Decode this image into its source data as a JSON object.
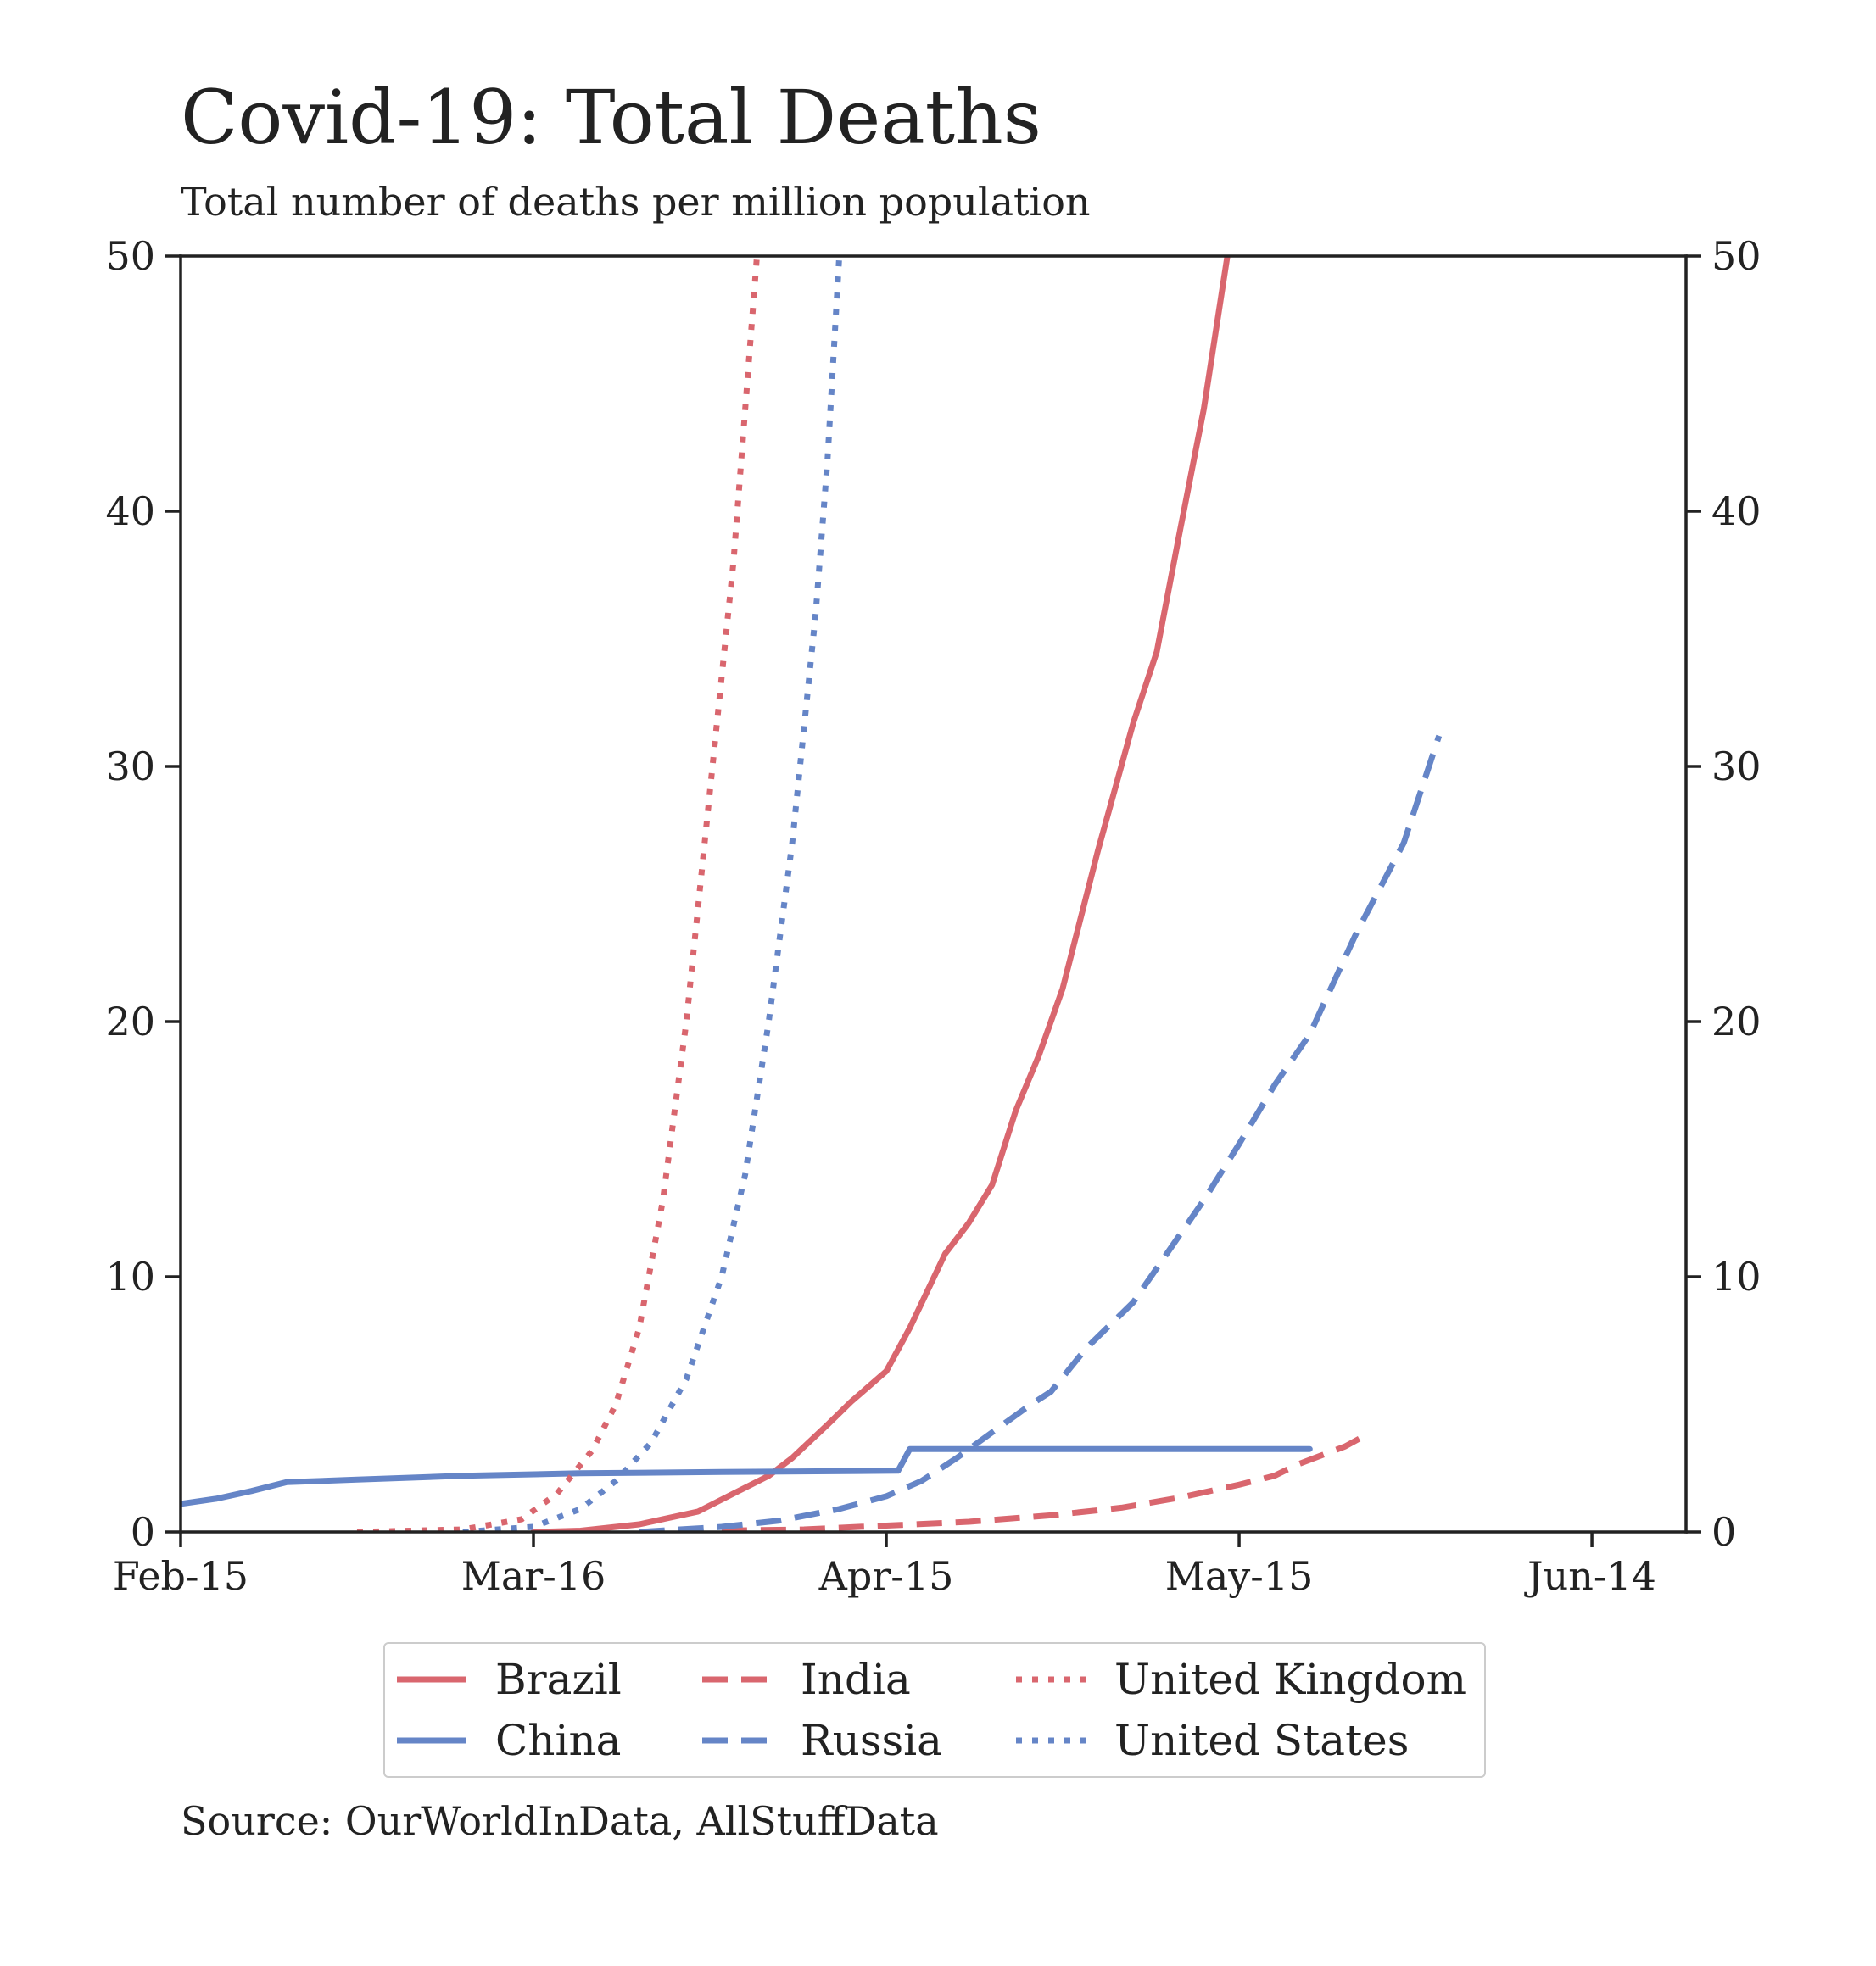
{
  "chart_data": {
    "type": "line",
    "title": "Covid-19: Total Deaths",
    "subtitle": "Total number of deaths per million population",
    "source": "Source: OurWorldInData, AllStuffData",
    "x_ticks": [
      "Feb-15",
      "Mar-16",
      "Apr-15",
      "May-15",
      "Jun-14"
    ],
    "x_tick_dates": [
      "2020-02-15",
      "2020-03-16",
      "2020-04-15",
      "2020-05-15",
      "2020-06-14"
    ],
    "xlim": [
      "2020-02-15",
      "2020-06-22"
    ],
    "ylim": [
      0,
      50
    ],
    "y_ticks": [
      0,
      10,
      20,
      30,
      40,
      50
    ],
    "y_axis_both_sides": true,
    "grid": false,
    "legend_position": "bottom",
    "series": [
      {
        "name": "Brazil",
        "color": "#d9666e",
        "style": "solid",
        "points": [
          [
            "2020-03-16",
            0
          ],
          [
            "2020-03-20",
            0.05
          ],
          [
            "2020-03-25",
            0.3
          ],
          [
            "2020-03-30",
            0.8
          ],
          [
            "2020-04-02",
            1.5
          ],
          [
            "2020-04-05",
            2.2
          ],
          [
            "2020-04-07",
            2.9
          ],
          [
            "2020-04-10",
            4.2
          ],
          [
            "2020-04-12",
            5.1
          ],
          [
            "2020-04-15",
            6.3
          ],
          [
            "2020-04-17",
            8
          ],
          [
            "2020-04-20",
            10.9
          ],
          [
            "2020-04-22",
            12.1
          ],
          [
            "2020-04-24",
            13.6
          ],
          [
            "2020-04-26",
            16.5
          ],
          [
            "2020-04-28",
            18.7
          ],
          [
            "2020-04-30",
            21.3
          ],
          [
            "2020-05-03",
            26.7
          ],
          [
            "2020-05-06",
            31.7
          ],
          [
            "2020-05-08",
            34.5
          ],
          [
            "2020-05-10",
            39.3
          ],
          [
            "2020-05-12",
            44
          ],
          [
            "2020-05-14",
            50
          ]
        ]
      },
      {
        "name": "China",
        "color": "#6585c7",
        "style": "solid",
        "points": [
          [
            "2020-02-15",
            1.1
          ],
          [
            "2020-02-18",
            1.3
          ],
          [
            "2020-02-21",
            1.6
          ],
          [
            "2020-02-24",
            1.95
          ],
          [
            "2020-03-01",
            2.05
          ],
          [
            "2020-03-10",
            2.2
          ],
          [
            "2020-03-20",
            2.3
          ],
          [
            "2020-04-01",
            2.35
          ],
          [
            "2020-04-16",
            2.4
          ],
          [
            "2020-04-17",
            3.25
          ],
          [
            "2020-05-01",
            3.25
          ],
          [
            "2020-05-21",
            3.25
          ]
        ]
      },
      {
        "name": "India",
        "color": "#d9666e",
        "style": "dashed",
        "points": [
          [
            "2020-04-01",
            0.05
          ],
          [
            "2020-04-08",
            0.1
          ],
          [
            "2020-04-15",
            0.25
          ],
          [
            "2020-04-22",
            0.4
          ],
          [
            "2020-04-29",
            0.65
          ],
          [
            "2020-05-05",
            0.95
          ],
          [
            "2020-05-10",
            1.35
          ],
          [
            "2020-05-15",
            1.85
          ],
          [
            "2020-05-18",
            2.2
          ],
          [
            "2020-05-20",
            2.65
          ],
          [
            "2020-05-22",
            3
          ],
          [
            "2020-05-24",
            3.35
          ],
          [
            "2020-05-26",
            3.85
          ]
        ]
      },
      {
        "name": "Russia",
        "color": "#6585c7",
        "style": "dashed",
        "points": [
          [
            "2020-03-25",
            0
          ],
          [
            "2020-04-01",
            0.2
          ],
          [
            "2020-04-06",
            0.45
          ],
          [
            "2020-04-11",
            0.9
          ],
          [
            "2020-04-15",
            1.4
          ],
          [
            "2020-04-18",
            2
          ],
          [
            "2020-04-21",
            2.9
          ],
          [
            "2020-04-24",
            3.9
          ],
          [
            "2020-04-27",
            4.9
          ],
          [
            "2020-04-29",
            5.5
          ],
          [
            "2020-05-02",
            7.2
          ],
          [
            "2020-05-06",
            9
          ],
          [
            "2020-05-09",
            11
          ],
          [
            "2020-05-12",
            13
          ],
          [
            "2020-05-15",
            15.2
          ],
          [
            "2020-05-18",
            17.5
          ],
          [
            "2020-05-21",
            19.5
          ],
          [
            "2020-05-25",
            23.5
          ],
          [
            "2020-05-29",
            27
          ],
          [
            "2020-06-01",
            31.2
          ]
        ]
      },
      {
        "name": "United Kingdom",
        "color": "#d9666e",
        "style": "dotted",
        "points": [
          [
            "2020-03-01",
            0
          ],
          [
            "2020-03-10",
            0.1
          ],
          [
            "2020-03-15",
            0.5
          ],
          [
            "2020-03-18",
            1.5
          ],
          [
            "2020-03-21",
            3.2
          ],
          [
            "2020-03-23",
            5
          ],
          [
            "2020-03-25",
            8
          ],
          [
            "2020-03-27",
            13
          ],
          [
            "2020-03-29",
            20
          ],
          [
            "2020-03-31",
            29
          ],
          [
            "2020-04-02",
            38
          ],
          [
            "2020-04-04",
            50
          ]
        ]
      },
      {
        "name": "United States",
        "color": "#6585c7",
        "style": "dotted",
        "points": [
          [
            "2020-03-10",
            0
          ],
          [
            "2020-03-16",
            0.2
          ],
          [
            "2020-03-20",
            0.9
          ],
          [
            "2020-03-23",
            2
          ],
          [
            "2020-03-26",
            3.5
          ],
          [
            "2020-03-29",
            6
          ],
          [
            "2020-04-01",
            10
          ],
          [
            "2020-04-03",
            14
          ],
          [
            "2020-04-05",
            20
          ],
          [
            "2020-04-07",
            27
          ],
          [
            "2020-04-09",
            36
          ],
          [
            "2020-04-10",
            42
          ],
          [
            "2020-04-11",
            50
          ]
        ]
      }
    ]
  }
}
